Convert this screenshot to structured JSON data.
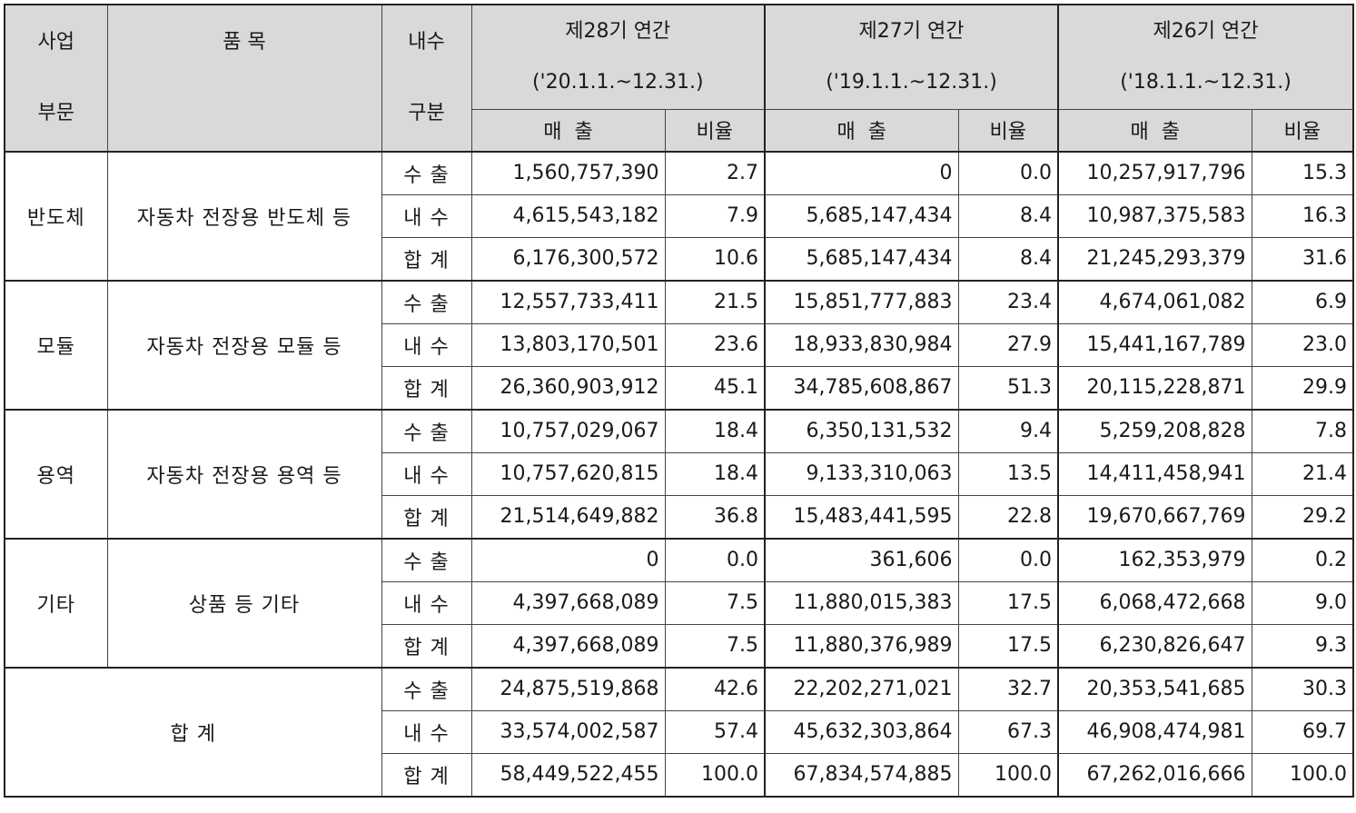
{
  "header": {
    "segment_line1": "사업",
    "segment_line2": "부문",
    "item": "품 목",
    "domestic_line1": "내수",
    "domestic_line2": "구분",
    "periods": [
      {
        "name": "제28기 연간",
        "range": "('20.1.1.~12.31.)"
      },
      {
        "name": "제27기 연간",
        "range": "('19.1.1.~12.31.)"
      },
      {
        "name": "제26기 연간",
        "range": "('18.1.1.~12.31.)"
      }
    ],
    "sales": "매  출",
    "ratio": "비율"
  },
  "groups": [
    {
      "segment": "반도체",
      "item": "자동차 전장용 반도체 등",
      "rows": [
        {
          "type": "수 출",
          "p28_sales": "1,560,757,390",
          "p28_ratio": "2.7",
          "p27_sales": "0",
          "p27_ratio": "0.0",
          "p26_sales": "10,257,917,796",
          "p26_ratio": "15.3"
        },
        {
          "type": "내 수",
          "p28_sales": "4,615,543,182",
          "p28_ratio": "7.9",
          "p27_sales": "5,685,147,434",
          "p27_ratio": "8.4",
          "p26_sales": "10,987,375,583",
          "p26_ratio": "16.3"
        },
        {
          "type": "합 계",
          "p28_sales": "6,176,300,572",
          "p28_ratio": "10.6",
          "p27_sales": "5,685,147,434",
          "p27_ratio": "8.4",
          "p26_sales": "21,245,293,379",
          "p26_ratio": "31.6"
        }
      ]
    },
    {
      "segment": "모듈",
      "item": "자동차 전장용 모듈 등",
      "rows": [
        {
          "type": "수 출",
          "p28_sales": "12,557,733,411",
          "p28_ratio": "21.5",
          "p27_sales": "15,851,777,883",
          "p27_ratio": "23.4",
          "p26_sales": "4,674,061,082",
          "p26_ratio": "6.9"
        },
        {
          "type": "내 수",
          "p28_sales": "13,803,170,501",
          "p28_ratio": "23.6",
          "p27_sales": "18,933,830,984",
          "p27_ratio": "27.9",
          "p26_sales": "15,441,167,789",
          "p26_ratio": "23.0"
        },
        {
          "type": "합 계",
          "p28_sales": "26,360,903,912",
          "p28_ratio": "45.1",
          "p27_sales": "34,785,608,867",
          "p27_ratio": "51.3",
          "p26_sales": "20,115,228,871",
          "p26_ratio": "29.9"
        }
      ]
    },
    {
      "segment": "용역",
      "item": "자동차 전장용 용역 등",
      "rows": [
        {
          "type": "수 출",
          "p28_sales": "10,757,029,067",
          "p28_ratio": "18.4",
          "p27_sales": "6,350,131,532",
          "p27_ratio": "9.4",
          "p26_sales": "5,259,208,828",
          "p26_ratio": "7.8"
        },
        {
          "type": "내 수",
          "p28_sales": "10,757,620,815",
          "p28_ratio": "18.4",
          "p27_sales": "9,133,310,063",
          "p27_ratio": "13.5",
          "p26_sales": "14,411,458,941",
          "p26_ratio": "21.4"
        },
        {
          "type": "합 계",
          "p28_sales": "21,514,649,882",
          "p28_ratio": "36.8",
          "p27_sales": "15,483,441,595",
          "p27_ratio": "22.8",
          "p26_sales": "19,670,667,769",
          "p26_ratio": "29.2"
        }
      ]
    },
    {
      "segment": "기타",
      "item": "상품 등 기타",
      "rows": [
        {
          "type": "수 출",
          "p28_sales": "0",
          "p28_ratio": "0.0",
          "p27_sales": "361,606",
          "p27_ratio": "0.0",
          "p26_sales": "162,353,979",
          "p26_ratio": "0.2"
        },
        {
          "type": "내 수",
          "p28_sales": "4,397,668,089",
          "p28_ratio": "7.5",
          "p27_sales": "11,880,015,383",
          "p27_ratio": "17.5",
          "p26_sales": "6,068,472,668",
          "p26_ratio": "9.0"
        },
        {
          "type": "합 계",
          "p28_sales": "4,397,668,089",
          "p28_ratio": "7.5",
          "p27_sales": "11,880,376,989",
          "p27_ratio": "17.5",
          "p26_sales": "6,230,826,647",
          "p26_ratio": "9.3"
        }
      ]
    }
  ],
  "total": {
    "label": "합 계",
    "rows": [
      {
        "type": "수 출",
        "p28_sales": "24,875,519,868",
        "p28_ratio": "42.6",
        "p27_sales": "22,202,271,021",
        "p27_ratio": "32.7",
        "p26_sales": "20,353,541,685",
        "p26_ratio": "30.3"
      },
      {
        "type": "내 수",
        "p28_sales": "33,574,002,587",
        "p28_ratio": "57.4",
        "p27_sales": "45,632,303,864",
        "p27_ratio": "67.3",
        "p26_sales": "46,908,474,981",
        "p26_ratio": "69.7"
      },
      {
        "type": "합 계",
        "p28_sales": "58,449,522,455",
        "p28_ratio": "100.0",
        "p27_sales": "67,834,574,885",
        "p27_ratio": "100.0",
        "p26_sales": "67,262,016,666",
        "p26_ratio": "100.0"
      }
    ]
  }
}
